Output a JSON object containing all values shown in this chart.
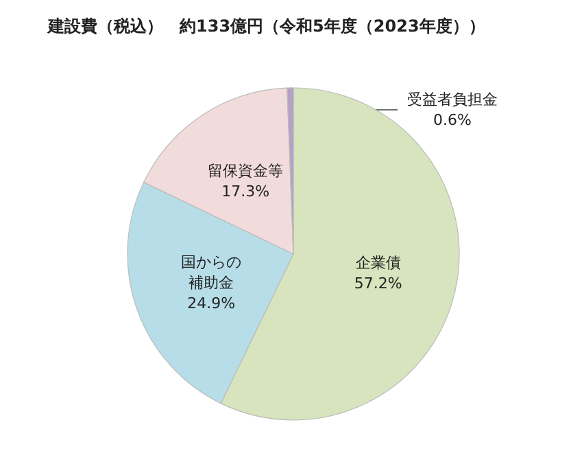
{
  "chart_data": {
    "type": "pie",
    "title": "建設費（税込）　約133億円（令和5年度（2023年度））",
    "categories": [
      "企業債",
      "国からの補助金",
      "留保資金等",
      "受益者負担金"
    ],
    "values": [
      57.2,
      24.9,
      17.3,
      0.6
    ],
    "colors": [
      "#d7e4bd",
      "#b7dee8",
      "#f2dcdb",
      "#b3a2c7"
    ],
    "value_labels": [
      "57.2%",
      "24.9%",
      "17.3%",
      "0.6%"
    ],
    "legend": false
  }
}
